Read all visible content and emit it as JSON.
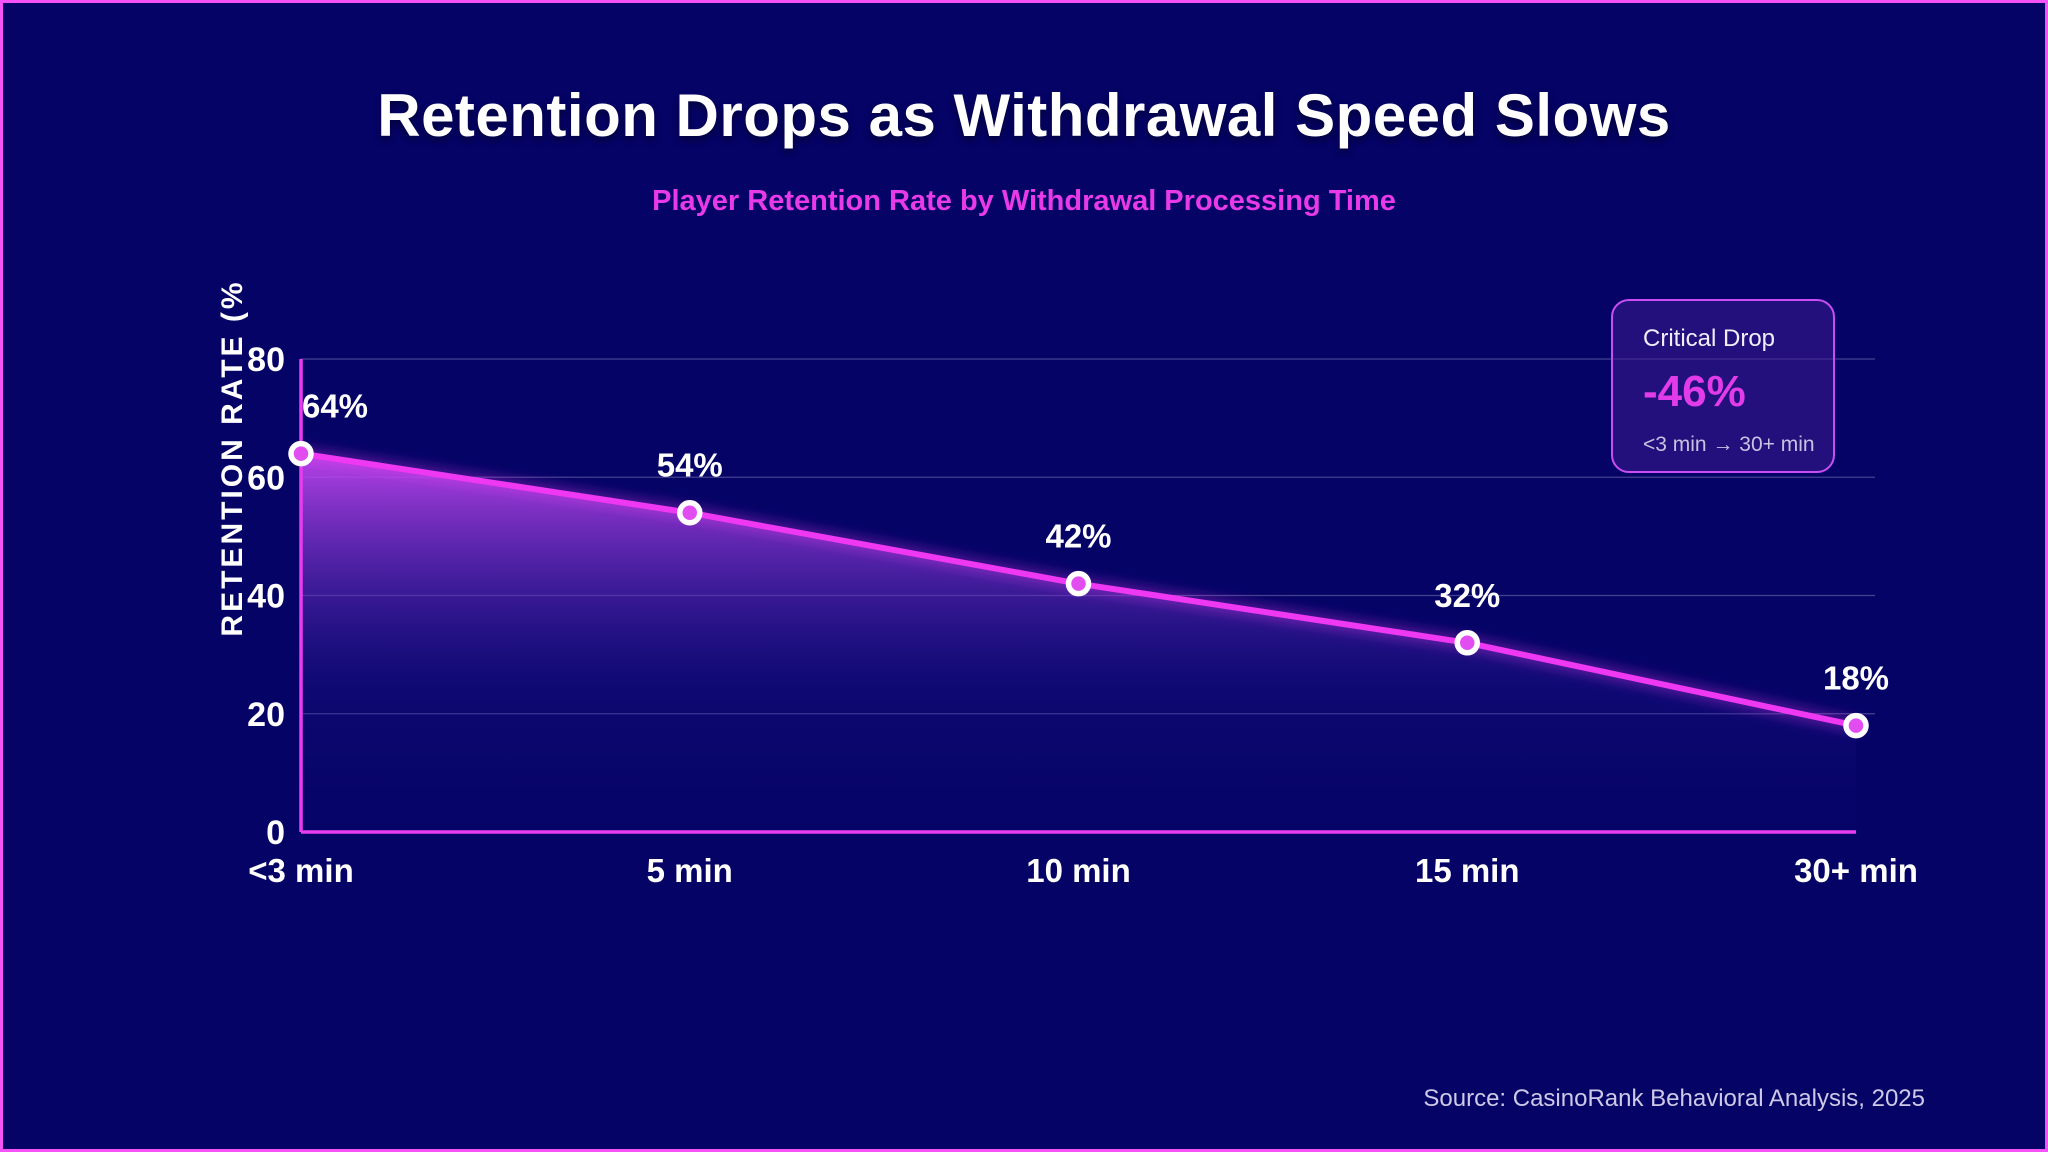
{
  "frame": {
    "background_color": "#050366",
    "border_color": "#f553f5"
  },
  "header": {
    "title": "Retention Drops as Withdrawal Speed Slows",
    "subtitle": "Player Retention Rate by Withdrawal Processing Time"
  },
  "chart_data": {
    "type": "line",
    "title": "Player Retention Rate by Withdrawal Processing Time",
    "categories": [
      "<3 min",
      "5 min",
      "10 min",
      "15 min",
      "30+ min"
    ],
    "values": [
      64,
      54,
      42,
      32,
      18
    ],
    "point_labels": [
      "64%",
      "54%",
      "42%",
      "32%",
      "18%"
    ],
    "xlabel": "",
    "ylabel": "RETENTION RATE (%",
    "ylim": [
      0,
      80
    ],
    "yticks": [
      0,
      20,
      40,
      60,
      80
    ],
    "grid": "horizontal",
    "legend": "none",
    "colors": {
      "line": "#ee38f2",
      "marker_fill": "#e14df0",
      "marker_stroke": "#ffffff",
      "axis": "#e83cf0",
      "gridline": "rgba(215,210,240,0.30)",
      "area_top": "rgba(200,72,244,0.92)",
      "area_mid": "rgba(110,48,195,0.55)",
      "area_low": "rgba(38,24,148,0.28)",
      "area_bottom": "rgba(12,6,112,0.10)",
      "tick_text": "#ffffff",
      "label_text": "#ffffff"
    }
  },
  "callout": {
    "title": "Critical Drop",
    "value": "-46%",
    "range": "<3 min → 30+ min"
  },
  "footer": {
    "source": "Source: CasinoRank Behavioral Analysis, 2025"
  }
}
